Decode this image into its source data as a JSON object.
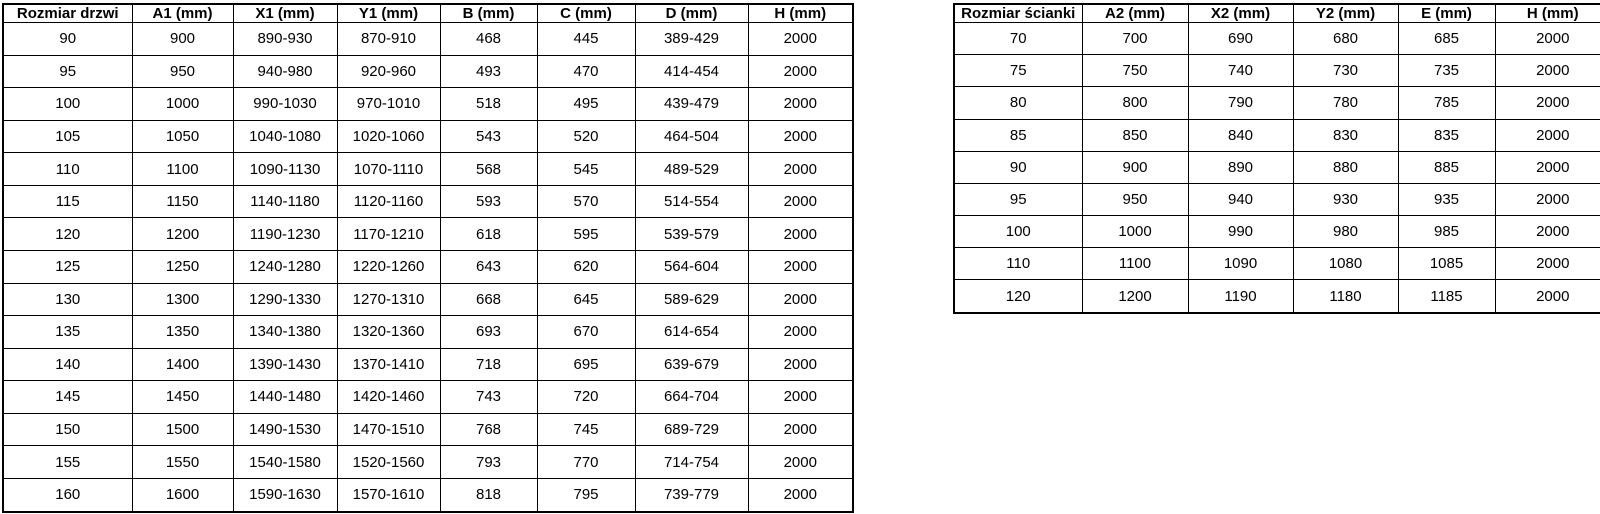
{
  "page": {
    "background": "#ffffff",
    "border_color": "#000000",
    "text_color": "#000000"
  },
  "door_table": {
    "title_semantic": "door-size-dimensions",
    "headers": [
      "Rozmiar drzwi",
      "A1 (mm)",
      "X1 (mm)",
      "Y1 (mm)",
      "B (mm)",
      "C (mm)",
      "D (mm)",
      "H (mm)"
    ],
    "rows": [
      [
        "90",
        "900",
        "890-930",
        "870-910",
        "468",
        "445",
        "389-429",
        "2000"
      ],
      [
        "95",
        "950",
        "940-980",
        "920-960",
        "493",
        "470",
        "414-454",
        "2000"
      ],
      [
        "100",
        "1000",
        "990-1030",
        "970-1010",
        "518",
        "495",
        "439-479",
        "2000"
      ],
      [
        "105",
        "1050",
        "1040-1080",
        "1020-1060",
        "543",
        "520",
        "464-504",
        "2000"
      ],
      [
        "110",
        "1100",
        "1090-1130",
        "1070-1110",
        "568",
        "545",
        "489-529",
        "2000"
      ],
      [
        "115",
        "1150",
        "1140-1180",
        "1120-1160",
        "593",
        "570",
        "514-554",
        "2000"
      ],
      [
        "120",
        "1200",
        "1190-1230",
        "1170-1210",
        "618",
        "595",
        "539-579",
        "2000"
      ],
      [
        "125",
        "1250",
        "1240-1280",
        "1220-1260",
        "643",
        "620",
        "564-604",
        "2000"
      ],
      [
        "130",
        "1300",
        "1290-1330",
        "1270-1310",
        "668",
        "645",
        "589-629",
        "2000"
      ],
      [
        "135",
        "1350",
        "1340-1380",
        "1320-1360",
        "693",
        "670",
        "614-654",
        "2000"
      ],
      [
        "140",
        "1400",
        "1390-1430",
        "1370-1410",
        "718",
        "695",
        "639-679",
        "2000"
      ],
      [
        "145",
        "1450",
        "1440-1480",
        "1420-1460",
        "743",
        "720",
        "664-704",
        "2000"
      ],
      [
        "150",
        "1500",
        "1490-1530",
        "1470-1510",
        "768",
        "745",
        "689-729",
        "2000"
      ],
      [
        "155",
        "1550",
        "1540-1580",
        "1520-1560",
        "793",
        "770",
        "714-754",
        "2000"
      ],
      [
        "160",
        "1600",
        "1590-1630",
        "1570-1610",
        "818",
        "795",
        "739-779",
        "2000"
      ]
    ]
  },
  "wall_table": {
    "title_semantic": "wall-panel-size-dimensions",
    "headers": [
      "Rozmiar ścianki",
      "A2 (mm)",
      "X2 (mm)",
      "Y2 (mm)",
      "E (mm)",
      "H (mm)"
    ],
    "rows": [
      [
        "70",
        "700",
        "690",
        "680",
        "685",
        "2000"
      ],
      [
        "75",
        "750",
        "740",
        "730",
        "735",
        "2000"
      ],
      [
        "80",
        "800",
        "790",
        "780",
        "785",
        "2000"
      ],
      [
        "85",
        "850",
        "840",
        "830",
        "835",
        "2000"
      ],
      [
        "90",
        "900",
        "890",
        "880",
        "885",
        "2000"
      ],
      [
        "95",
        "950",
        "940",
        "930",
        "935",
        "2000"
      ],
      [
        "100",
        "1000",
        "990",
        "980",
        "985",
        "2000"
      ],
      [
        "110",
        "1100",
        "1090",
        "1080",
        "1085",
        "2000"
      ],
      [
        "120",
        "1200",
        "1190",
        "1180",
        "1185",
        "2000"
      ]
    ]
  }
}
